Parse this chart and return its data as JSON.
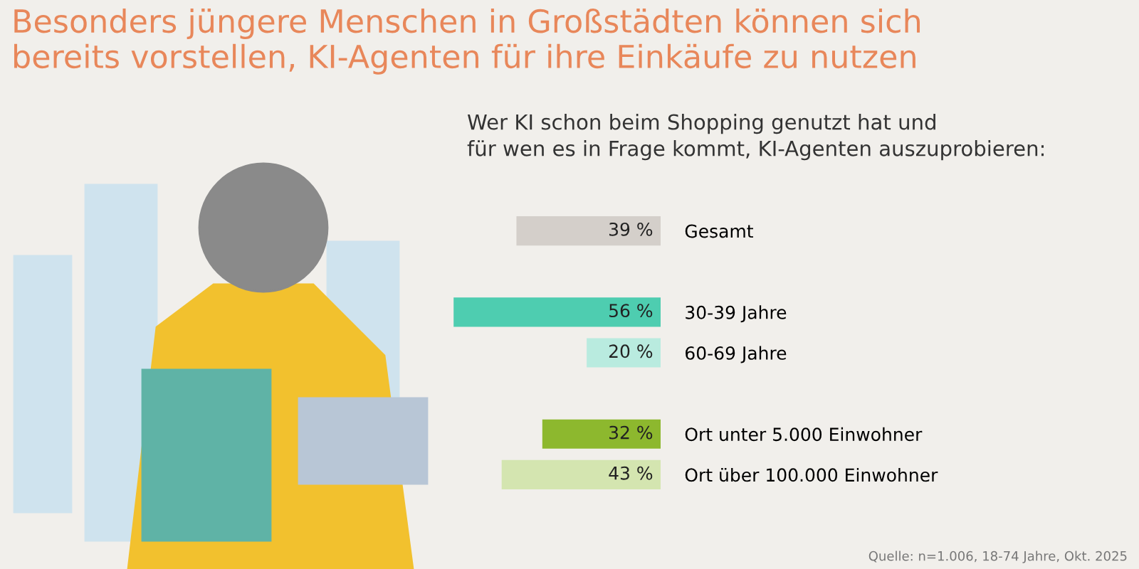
{
  "chart_data": {
    "type": "bar",
    "orientation": "horizontal",
    "title": "Besonders jüngere Menschen in Großstädten können sich\nbereits vorstellen, KI-Agenten für ihre Einkäufe zu nutzen",
    "subtitle": "Wer KI schon beim Shopping genutzt hat und\nfür wen es in Frage kommt, KI-Agenten auszuprobieren:",
    "categories": [
      "Gesamt",
      null,
      "30-39 Jahre",
      "60-69 Jahre",
      null,
      "Ort unter 5.000 Einwohner",
      "Ort über 100.000 Einwohner"
    ],
    "values": [
      39,
      null,
      56,
      20,
      null,
      32,
      43
    ],
    "value_labels": [
      "39 %",
      null,
      "56 %",
      "20 %",
      null,
      "32 %",
      "43 %"
    ],
    "colors": [
      "#d4cfca",
      null,
      "#4ecdb0",
      "#b9ebdf",
      null,
      "#8db82e",
      "#d4e5b0"
    ],
    "xlim": [
      57,
      0
    ],
    "tick_labels": "y",
    "grid": false,
    "legend": false,
    "annotations": [
      "Quelle: n=1.006, 18-74 Jahre, Okt. 2025"
    ]
  }
}
